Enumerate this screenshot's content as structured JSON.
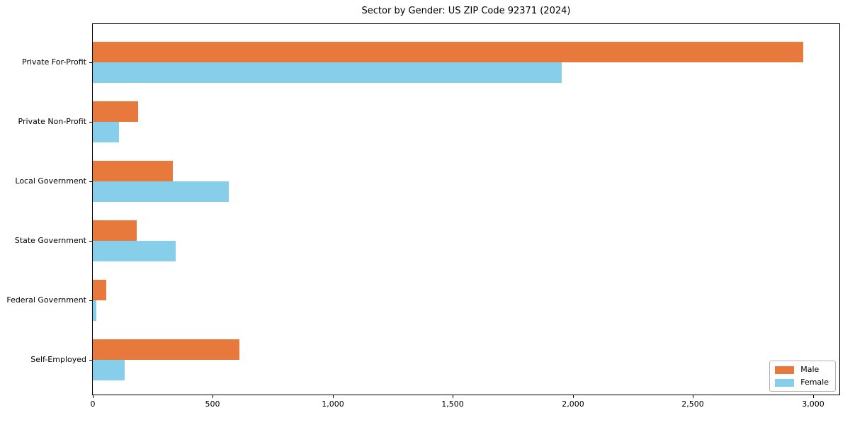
{
  "chart_data": {
    "type": "bar",
    "orientation": "horizontal",
    "title": "Sector by Gender: US ZIP Code 92371 (2024)",
    "categories": [
      "Private For-Profit",
      "Private Non-Profit",
      "Local Government",
      "State Government",
      "Federal Government",
      "Self-Employed"
    ],
    "series": [
      {
        "name": "Male",
        "color": "#E8793D",
        "values": [
          2960,
          190,
          332,
          182,
          56,
          612
        ]
      },
      {
        "name": "Female",
        "color": "#87CEEB",
        "values": [
          1953,
          110,
          568,
          345,
          15,
          133
        ]
      }
    ],
    "xlabel": "",
    "ylabel": "",
    "xlim": [
      0,
      3110
    ],
    "xticks": [
      0,
      500,
      1000,
      1500,
      2000,
      2500,
      3000
    ],
    "xtick_labels": [
      "0",
      "500",
      "1,000",
      "1,500",
      "2,000",
      "2,500",
      "3,000"
    ],
    "grid": false,
    "legend": {
      "position": "lower right",
      "entries": [
        "Male",
        "Female"
      ]
    },
    "axis_color": "#000000",
    "background_color": "#ffffff"
  }
}
